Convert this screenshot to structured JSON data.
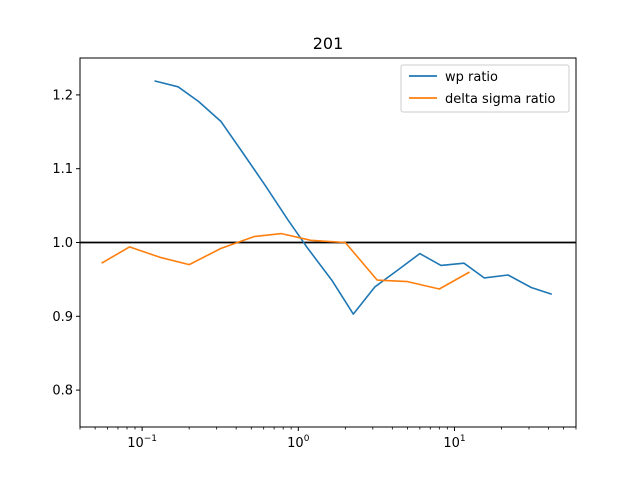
{
  "chart_data": {
    "type": "line",
    "title": "201",
    "xlabel": "",
    "ylabel": "",
    "xscale": "log",
    "xlim": [
      0.04,
      60
    ],
    "ylim": [
      0.75,
      1.25
    ],
    "x_ticks": [
      {
        "value": 0.1,
        "base": "10",
        "exp": "−1"
      },
      {
        "value": 1,
        "base": "10",
        "exp": "0"
      },
      {
        "value": 10,
        "base": "10",
        "exp": "1"
      }
    ],
    "y_ticks": [
      {
        "value": 0.8,
        "label": "0.8"
      },
      {
        "value": 0.9,
        "label": "0.9"
      },
      {
        "value": 1.0,
        "label": "1.0"
      },
      {
        "value": 1.1,
        "label": "1.1"
      },
      {
        "value": 1.2,
        "label": "1.2"
      }
    ],
    "legend_position": "top-right",
    "reference_line": {
      "y": 1.0,
      "color": "#000000"
    },
    "series": [
      {
        "name": "wp ratio",
        "color": "#1f77b4",
        "x": [
          0.12,
          0.17,
          0.23,
          0.32,
          0.44,
          0.62,
          0.85,
          1.15,
          1.65,
          2.25,
          3.1,
          4.3,
          6.0,
          8.2,
          11.5,
          15.5,
          22.0,
          31.0,
          42.0
        ],
        "y": [
          1.219,
          1.211,
          1.191,
          1.164,
          1.122,
          1.076,
          1.032,
          0.992,
          0.948,
          0.903,
          0.94,
          0.962,
          0.985,
          0.969,
          0.972,
          0.952,
          0.956,
          0.939,
          0.93
        ]
      },
      {
        "name": "delta sigma ratio",
        "color": "#ff7f0e",
        "x": [
          0.055,
          0.083,
          0.13,
          0.2,
          0.32,
          0.52,
          0.78,
          1.2,
          2.0,
          3.2,
          5.0,
          8.0,
          12.5
        ],
        "y": [
          0.972,
          0.994,
          0.98,
          0.97,
          0.992,
          1.008,
          1.012,
          1.003,
          1.0,
          0.949,
          0.947,
          0.937,
          0.96
        ]
      }
    ]
  }
}
